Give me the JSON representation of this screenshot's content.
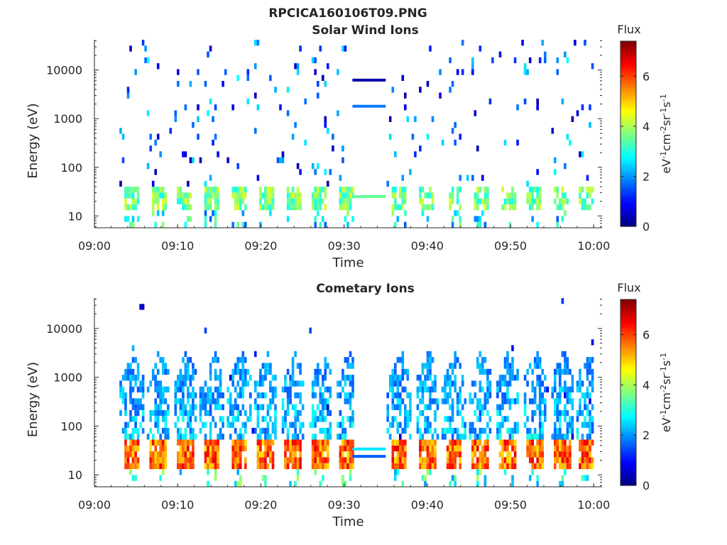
{
  "figure": {
    "title": "RPCICA160106T09.PNG"
  },
  "colorbar": {
    "label": "Flux",
    "unit_parts": [
      "eV",
      "-1",
      "cm",
      "-2",
      "sr",
      "-1",
      "s",
      "-1"
    ],
    "range": [
      0,
      7.4
    ],
    "ticks": [
      0,
      2,
      4,
      6
    ],
    "colormap": "jet"
  },
  "chart_data": [
    {
      "type": "heatmap",
      "title": "Solar Wind Ions",
      "xlabel": "Time",
      "ylabel": "Energy (eV)",
      "x_ticks": [
        "09:00",
        "09:10",
        "09:20",
        "09:30",
        "09:40",
        "09:50",
        "10:00"
      ],
      "xlim": [
        "09:00",
        "10:01"
      ],
      "y_ticks": [
        10,
        100,
        1000,
        10000
      ],
      "y_scale": "log",
      "ylim": [
        5.7,
        42000
      ],
      "grid": false,
      "data_gap": [
        "09:31",
        "09:35"
      ],
      "burst_times_min": [
        4.3,
        7.5,
        10.8,
        14.0,
        17.3,
        20.5,
        23.8,
        27.0,
        30.3,
        36.5,
        39.8,
        43.0,
        46.2,
        49.5,
        52.7,
        56.0,
        59.0
      ],
      "features": [
        {
          "energy_eV": [
            17,
            34
          ],
          "flux": 3.5,
          "note": "periodic low-energy bursts"
        },
        {
          "energy_eV": [
            30,
            30000
          ],
          "flux": 1.5,
          "note": "sparse background counts"
        }
      ],
      "gap_lines": [
        {
          "energy_eV": 6200,
          "flux": 0.3
        },
        {
          "energy_eV": 1800,
          "flux": 1.8
        },
        {
          "energy_eV": 25,
          "flux": 3.5
        }
      ]
    },
    {
      "type": "heatmap",
      "title": "Cometary Ions",
      "xlabel": "Time",
      "ylabel": "Energy (eV)",
      "x_ticks": [
        "09:00",
        "09:10",
        "09:20",
        "09:30",
        "09:40",
        "09:50",
        "10:00"
      ],
      "xlim": [
        "09:00",
        "10:01"
      ],
      "y_ticks": [
        10,
        100,
        1000,
        10000
      ],
      "y_scale": "log",
      "ylim": [
        5.7,
        42000
      ],
      "grid": false,
      "data_gap": [
        "09:31",
        "09:35"
      ],
      "burst_times_min": [
        4.3,
        7.5,
        10.8,
        14.0,
        17.3,
        20.5,
        23.8,
        27.0,
        30.3,
        36.5,
        39.8,
        43.0,
        46.2,
        49.5,
        52.7,
        56.0,
        59.0
      ],
      "features": [
        {
          "energy_eV": [
            12,
            45
          ],
          "flux": 6.5,
          "note": "intense periodic bursts"
        },
        {
          "energy_eV": [
            45,
            6000
          ],
          "flux": 3.0,
          "note": "dispersed tails toward high energy"
        }
      ],
      "gap_lines": [
        {
          "energy_eV": 34,
          "flux": 2.6
        },
        {
          "energy_eV": 24,
          "flux": 1.6
        }
      ]
    }
  ]
}
